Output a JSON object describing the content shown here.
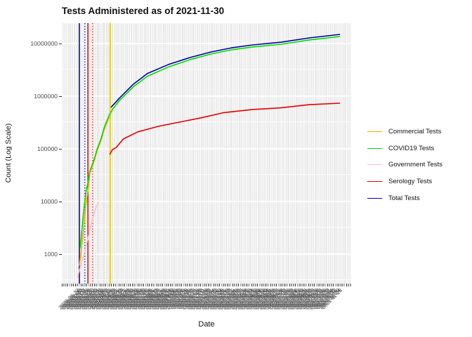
{
  "title": "Tests Administered as of 2021-11-30",
  "x_axis_label": "Date",
  "y_axis_label": "Count (Log Scale)",
  "legend": {
    "position": "right",
    "entries": [
      {
        "label": "Commercial Tests",
        "color": "#FFA500"
      },
      {
        "label": "COVID19 Tests",
        "color": "#00DD00"
      },
      {
        "label": "Government Tests",
        "color": "#FFC0CB"
      },
      {
        "label": "Serology Tests",
        "color": "#E60000"
      },
      {
        "label": "Total Tests",
        "color": "#0000A8"
      }
    ]
  },
  "chart_data": {
    "type": "line",
    "title": "Tests Administered as of 2021-11-30",
    "xlabel": "Date",
    "ylabel": "Count (Log Scale)",
    "y_scale": "log10",
    "y_ticks": [
      1000,
      10000,
      100000,
      1000000,
      10000000
    ],
    "ylim": [
      300,
      23000000
    ],
    "x_range": {
      "start": "2020-01-22",
      "end": "2021-11-30"
    },
    "x_unit": "days since 2020-01-22",
    "x_tick_step_days": 4,
    "grid": "dense vertical white gridlines on gray panel, white horizontal log gridlines",
    "legend_position": "right",
    "vlines": [
      {
        "date": "2020-01-31",
        "color": "#0000A8",
        "style": "solid"
      },
      {
        "date": "2020-02-14",
        "color": "#0000A8",
        "style": "dotted"
      },
      {
        "date": "2020-02-22",
        "color": "#E60000",
        "style": "solid"
      },
      {
        "date": "2020-03-05",
        "color": "#E60000",
        "style": "dotted"
      },
      {
        "date": "2020-03-18",
        "color": "#FFC0CB",
        "style": "dotted"
      },
      {
        "date": "2020-04-03",
        "color": "#FFC0CB",
        "style": "dotted"
      },
      {
        "date": "2020-04-19",
        "color": "#EEC900",
        "style": "solid"
      }
    ],
    "series": [
      {
        "name": "Commercial Tests",
        "color": "#FFA500",
        "points": [
          [
            9,
            600
          ],
          [
            14,
            1200
          ],
          [
            20,
            3100
          ],
          [
            25,
            7800
          ],
          [
            31,
            16000
          ],
          [
            36,
            35000
          ],
          [
            43,
            48000
          ],
          [
            49,
            66000
          ],
          [
            54,
            90000
          ],
          [
            61,
            122000
          ],
          [
            67,
            165000
          ],
          [
            72,
            225000
          ],
          [
            79,
            305000
          ],
          [
            85,
            395000
          ],
          [
            87,
            425000
          ]
        ]
      },
      {
        "name": "COVID19 Tests",
        "color": "#00DD00",
        "points": [
          [
            11,
            1300
          ],
          [
            18,
            4500
          ],
          [
            22,
            9000
          ],
          [
            27,
            17000
          ],
          [
            31,
            23000
          ],
          [
            36,
            38000
          ],
          [
            43,
            52000
          ],
          [
            49,
            71000
          ],
          [
            54,
            96000
          ],
          [
            61,
            131000
          ],
          [
            67,
            178000
          ],
          [
            72,
            242000
          ],
          [
            79,
            330000
          ],
          [
            85,
            425000
          ],
          [
            87,
            455000
          ],
          [
            94,
            560000
          ],
          [
            112,
            830000
          ],
          [
            148,
            1520000
          ],
          [
            184,
            2400000
          ],
          [
            238,
            3600000
          ],
          [
            292,
            4900000
          ],
          [
            346,
            6300000
          ],
          [
            400,
            7600000
          ],
          [
            454,
            8600000
          ],
          [
            527,
            9700000
          ],
          [
            599,
            11700000
          ],
          [
            678,
            13600000
          ]
        ]
      },
      {
        "name": "Government Tests",
        "color": "#FFC0CB",
        "points": [
          [
            4,
            360
          ],
          [
            9,
            490
          ],
          [
            16,
            730
          ],
          [
            23,
            1150
          ],
          [
            31,
            1950
          ],
          [
            38,
            3400
          ],
          [
            45,
            5300
          ],
          [
            52,
            7900
          ],
          [
            58,
            9800
          ]
        ]
      },
      {
        "name": "Serology Tests",
        "color": "#E60000",
        "points": [
          [
            87,
            78000
          ],
          [
            94,
            97000
          ],
          [
            103,
            105000
          ],
          [
            122,
            154000
          ],
          [
            159,
            210000
          ],
          [
            214,
            270000
          ],
          [
            269,
            325000
          ],
          [
            323,
            390000
          ],
          [
            378,
            485000
          ],
          [
            454,
            560000
          ],
          [
            527,
            600000
          ],
          [
            599,
            690000
          ],
          [
            678,
            735000
          ]
        ]
      },
      {
        "name": "Total Tests",
        "color": "#0000A8",
        "points": [
          [
            90,
            610000
          ],
          [
            112,
            920000
          ],
          [
            148,
            1700000
          ],
          [
            184,
            2700000
          ],
          [
            238,
            4000000
          ],
          [
            292,
            5400000
          ],
          [
            346,
            6900000
          ],
          [
            400,
            8300000
          ],
          [
            454,
            9400000
          ],
          [
            527,
            10600000
          ],
          [
            599,
            12800000
          ],
          [
            678,
            14900000
          ]
        ]
      }
    ]
  }
}
